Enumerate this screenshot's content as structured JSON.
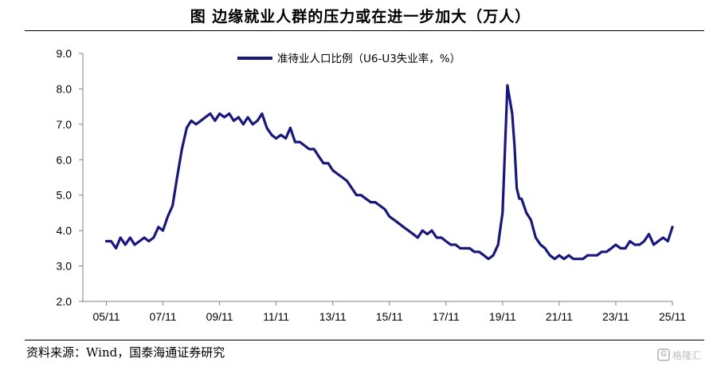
{
  "title": "图  边缘就业人群的压力或在进一步加大（万人）",
  "source": "资料来源：Wind，国泰海通证券研究",
  "watermark": "格隆汇",
  "colors": {
    "series": "#16168a",
    "axis": "#7f7f7f",
    "text": "#000000"
  },
  "chart_data": {
    "type": "line",
    "title": "",
    "xlabel": "",
    "ylabel": "",
    "ylim": [
      2.0,
      9.0
    ],
    "yticks": [
      "2.0",
      "3.0",
      "4.0",
      "5.0",
      "6.0",
      "7.0",
      "8.0",
      "9.0"
    ],
    "xticks": [
      "05/11",
      "07/11",
      "09/11",
      "11/11",
      "13/11",
      "15/11",
      "17/11",
      "19/11",
      "21/11",
      "23/11",
      "25/11"
    ],
    "grid": false,
    "legend_position": "top",
    "series": [
      {
        "name": "准待业人口比例（U6-U3失业率，%）",
        "color": "#16168a",
        "x": [
          2005.83,
          2006.0,
          2006.17,
          2006.33,
          2006.5,
          2006.67,
          2006.83,
          2007.0,
          2007.17,
          2007.33,
          2007.5,
          2007.67,
          2007.83,
          2008.0,
          2008.17,
          2008.33,
          2008.5,
          2008.67,
          2008.83,
          2009.0,
          2009.17,
          2009.33,
          2009.5,
          2009.67,
          2009.83,
          2010.0,
          2010.17,
          2010.33,
          2010.5,
          2010.67,
          2010.83,
          2011.0,
          2011.17,
          2011.33,
          2011.5,
          2011.67,
          2011.83,
          2012.0,
          2012.17,
          2012.33,
          2012.5,
          2012.67,
          2012.83,
          2013.0,
          2013.17,
          2013.33,
          2013.5,
          2013.67,
          2013.83,
          2014.0,
          2014.17,
          2014.33,
          2014.5,
          2014.67,
          2014.83,
          2015.0,
          2015.17,
          2015.33,
          2015.5,
          2015.67,
          2015.83,
          2016.0,
          2016.17,
          2016.33,
          2016.5,
          2016.67,
          2016.83,
          2017.0,
          2017.17,
          2017.33,
          2017.5,
          2017.67,
          2017.83,
          2018.0,
          2018.17,
          2018.33,
          2018.5,
          2018.67,
          2018.83,
          2019.0,
          2019.17,
          2019.33,
          2019.5,
          2019.67,
          2019.83,
          2020.0,
          2020.17,
          2020.25,
          2020.33,
          2020.42,
          2020.5,
          2020.67,
          2020.83,
          2021.0,
          2021.17,
          2021.33,
          2021.5,
          2021.67,
          2021.83,
          2022.0,
          2022.17,
          2022.33,
          2022.5,
          2022.67,
          2022.83,
          2023.0,
          2023.17,
          2023.33,
          2023.5,
          2023.67,
          2023.83,
          2024.0,
          2024.17,
          2024.33,
          2024.5,
          2024.67,
          2024.83,
          2025.0,
          2025.17,
          2025.33,
          2025.5,
          2025.67,
          2025.83
        ],
        "values": [
          3.7,
          3.7,
          3.5,
          3.8,
          3.6,
          3.8,
          3.6,
          3.7,
          3.8,
          3.7,
          3.8,
          4.1,
          4.0,
          4.4,
          4.7,
          5.5,
          6.3,
          6.9,
          7.1,
          7.0,
          7.1,
          7.2,
          7.3,
          7.1,
          7.3,
          7.2,
          7.3,
          7.1,
          7.2,
          7.0,
          7.2,
          7.0,
          7.1,
          7.3,
          6.9,
          6.7,
          6.6,
          6.7,
          6.6,
          6.9,
          6.5,
          6.5,
          6.4,
          6.3,
          6.3,
          6.1,
          5.9,
          5.9,
          5.7,
          5.6,
          5.5,
          5.4,
          5.2,
          5.0,
          5.0,
          4.9,
          4.8,
          4.8,
          4.7,
          4.6,
          4.4,
          4.3,
          4.2,
          4.1,
          4.0,
          3.9,
          3.8,
          4.0,
          3.9,
          4.0,
          3.8,
          3.8,
          3.7,
          3.6,
          3.6,
          3.5,
          3.5,
          3.5,
          3.4,
          3.4,
          3.3,
          3.2,
          3.3,
          3.6,
          4.5,
          8.1,
          7.3,
          6.4,
          5.2,
          4.9,
          4.9,
          4.5,
          4.3,
          3.8,
          3.6,
          3.5,
          3.3,
          3.2,
          3.3,
          3.2,
          3.3,
          3.2,
          3.2,
          3.2,
          3.3,
          3.3,
          3.3,
          3.4,
          3.4,
          3.5,
          3.6,
          3.5,
          3.5,
          3.7,
          3.6,
          3.6,
          3.7,
          3.9,
          3.6,
          3.7,
          3.8,
          3.7,
          4.1
        ]
      }
    ]
  }
}
